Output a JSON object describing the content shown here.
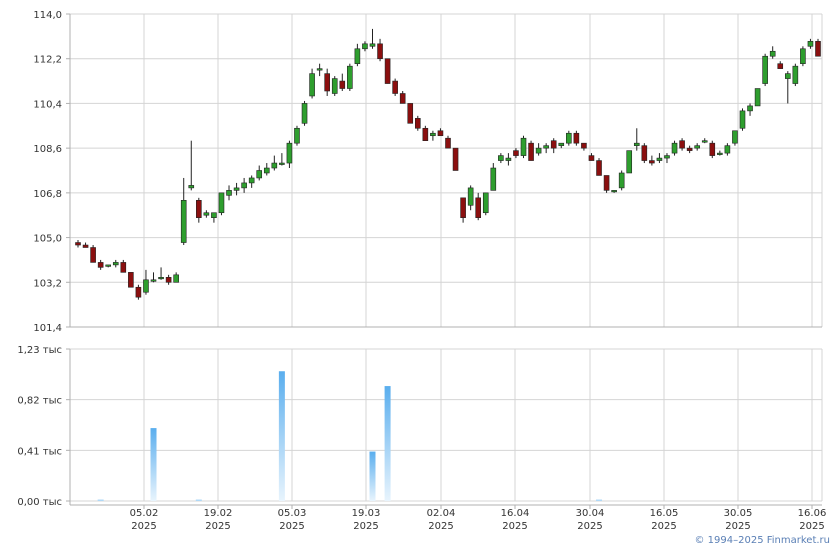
{
  "chart_data": [
    {
      "type": "candlestick",
      "ylim": [
        101.4,
        114.0
      ],
      "yticks": [
        "114,0",
        "112,2",
        "110,4",
        "108,6",
        "106,8",
        "105,0",
        "103,2",
        "101,4"
      ],
      "xticks": [
        {
          "date": "05.02",
          "year": "2025"
        },
        {
          "date": "19.02",
          "year": "2025"
        },
        {
          "date": "05.03",
          "year": "2025"
        },
        {
          "date": "19.03",
          "year": "2025"
        },
        {
          "date": "02.04",
          "year": "2025"
        },
        {
          "date": "16.04",
          "year": "2025"
        },
        {
          "date": "30.04",
          "year": "2025"
        },
        {
          "date": "16.05",
          "year": "2025"
        },
        {
          "date": "30.05",
          "year": "2025"
        },
        {
          "date": "16.06",
          "year": "2025"
        }
      ],
      "grid": true,
      "candles": [
        [
          104.8,
          104.9,
          104.6,
          104.7
        ],
        [
          104.7,
          104.8,
          104.6,
          104.6
        ],
        [
          104.6,
          104.7,
          104.0,
          104.0
        ],
        [
          104.0,
          104.1,
          103.7,
          103.8
        ],
        [
          103.9,
          103.9,
          103.8,
          103.9
        ],
        [
          103.9,
          104.1,
          103.8,
          104.0
        ],
        [
          104.0,
          104.1,
          103.6,
          103.6
        ],
        [
          103.6,
          103.6,
          103.0,
          103.0
        ],
        [
          103.0,
          103.1,
          102.5,
          102.6
        ],
        [
          102.8,
          103.7,
          102.7,
          103.3
        ],
        [
          103.3,
          103.6,
          103.2,
          103.3
        ],
        [
          103.4,
          103.8,
          103.3,
          103.4
        ],
        [
          103.4,
          103.5,
          103.1,
          103.2
        ],
        [
          103.2,
          103.6,
          103.2,
          103.5
        ],
        [
          104.8,
          107.4,
          104.7,
          106.5
        ],
        [
          107.0,
          108.9,
          106.9,
          107.1
        ],
        [
          106.5,
          106.6,
          105.6,
          105.8
        ],
        [
          105.9,
          106.1,
          105.8,
          106.0
        ],
        [
          105.8,
          106.0,
          105.6,
          106.0
        ],
        [
          106.0,
          106.8,
          105.9,
          106.8
        ],
        [
          106.7,
          107.1,
          106.5,
          106.9
        ],
        [
          106.9,
          107.2,
          106.7,
          107.0
        ],
        [
          107.0,
          107.4,
          106.8,
          107.2
        ],
        [
          107.2,
          107.5,
          107.0,
          107.4
        ],
        [
          107.4,
          107.9,
          107.3,
          107.7
        ],
        [
          107.6,
          108.0,
          107.5,
          107.8
        ],
        [
          107.8,
          108.3,
          107.7,
          108.0
        ],
        [
          108.0,
          108.4,
          107.9,
          108.0
        ],
        [
          108.0,
          108.9,
          107.8,
          108.8
        ],
        [
          108.8,
          109.5,
          108.7,
          109.4
        ],
        [
          109.6,
          110.5,
          109.5,
          110.4
        ],
        [
          110.7,
          111.8,
          110.6,
          111.6
        ],
        [
          111.8,
          112.0,
          111.5,
          111.8
        ],
        [
          111.6,
          111.8,
          110.7,
          110.9
        ],
        [
          110.8,
          111.5,
          110.7,
          111.4
        ],
        [
          111.3,
          111.6,
          110.9,
          111.0
        ],
        [
          111.0,
          112.0,
          110.9,
          111.9
        ],
        [
          112.0,
          112.8,
          111.9,
          112.6
        ],
        [
          112.6,
          112.9,
          112.5,
          112.8
        ],
        [
          112.7,
          113.4,
          112.6,
          112.8
        ],
        [
          112.8,
          113.0,
          112.1,
          112.2
        ],
        [
          112.2,
          112.2,
          111.2,
          111.2
        ],
        [
          111.3,
          111.4,
          110.7,
          110.8
        ],
        [
          110.8,
          110.9,
          110.4,
          110.4
        ],
        [
          110.4,
          110.4,
          109.6,
          109.6
        ],
        [
          109.8,
          109.9,
          109.3,
          109.4
        ],
        [
          109.4,
          109.5,
          108.9,
          108.9
        ],
        [
          109.1,
          109.3,
          108.9,
          109.2
        ],
        [
          109.3,
          109.4,
          109.1,
          109.1
        ],
        [
          109.0,
          109.1,
          108.6,
          108.6
        ],
        [
          108.6,
          108.6,
          107.7,
          107.7
        ],
        [
          106.6,
          106.6,
          105.6,
          105.8
        ],
        [
          106.3,
          107.1,
          106.1,
          107.0
        ],
        [
          106.6,
          106.8,
          105.7,
          105.8
        ],
        [
          106.0,
          106.8,
          105.9,
          106.8
        ],
        [
          106.9,
          108.0,
          106.9,
          107.8
        ],
        [
          108.1,
          108.4,
          108.0,
          108.3
        ],
        [
          108.1,
          108.4,
          107.9,
          108.2
        ],
        [
          108.5,
          108.6,
          108.2,
          108.3
        ],
        [
          108.3,
          109.1,
          108.2,
          109.0
        ],
        [
          108.8,
          108.9,
          108.1,
          108.1
        ],
        [
          108.4,
          108.8,
          108.3,
          108.6
        ],
        [
          108.6,
          108.8,
          108.4,
          108.7
        ],
        [
          108.9,
          109.0,
          108.4,
          108.6
        ],
        [
          108.7,
          108.8,
          108.6,
          108.8
        ],
        [
          108.8,
          109.3,
          108.7,
          109.2
        ],
        [
          109.2,
          109.3,
          108.7,
          108.8
        ],
        [
          108.8,
          108.8,
          108.5,
          108.6
        ],
        [
          108.3,
          108.4,
          108.1,
          108.1
        ],
        [
          108.1,
          108.2,
          107.5,
          107.5
        ],
        [
          107.5,
          107.5,
          106.8,
          106.9
        ],
        [
          106.9,
          106.9,
          106.8,
          106.9
        ],
        [
          107.0,
          107.7,
          106.9,
          107.6
        ],
        [
          107.6,
          108.5,
          107.6,
          108.5
        ],
        [
          108.7,
          109.4,
          108.5,
          108.8
        ],
        [
          108.7,
          108.8,
          108.0,
          108.1
        ],
        [
          108.1,
          108.3,
          107.9,
          108.0
        ],
        [
          108.1,
          108.4,
          108.0,
          108.2
        ],
        [
          108.2,
          108.4,
          108.0,
          108.3
        ],
        [
          108.4,
          108.9,
          108.3,
          108.8
        ],
        [
          108.9,
          109.0,
          108.5,
          108.6
        ],
        [
          108.6,
          108.7,
          108.4,
          108.5
        ],
        [
          108.6,
          108.8,
          108.5,
          108.7
        ],
        [
          108.9,
          109.0,
          108.8,
          108.9
        ],
        [
          108.8,
          108.9,
          108.2,
          108.3
        ],
        [
          108.4,
          108.5,
          108.3,
          108.4
        ],
        [
          108.4,
          108.8,
          108.3,
          108.7
        ],
        [
          108.8,
          109.3,
          108.7,
          109.3
        ],
        [
          109.4,
          110.2,
          109.3,
          110.1
        ],
        [
          110.1,
          110.4,
          109.9,
          110.3
        ],
        [
          110.3,
          111.0,
          110.3,
          111.0
        ],
        [
          111.2,
          112.4,
          111.1,
          112.3
        ],
        [
          112.3,
          112.7,
          112.2,
          112.5
        ],
        [
          112.0,
          112.1,
          111.8,
          111.8
        ],
        [
          111.4,
          111.7,
          110.4,
          111.6
        ],
        [
          111.2,
          112.0,
          111.1,
          111.9
        ],
        [
          112.0,
          112.7,
          111.9,
          112.6
        ],
        [
          112.7,
          113.0,
          112.6,
          112.9
        ],
        [
          112.9,
          113.0,
          112.3,
          112.3
        ]
      ]
    },
    {
      "type": "bar",
      "ylim": [
        0,
        1.23
      ],
      "yticks": [
        "1,23 тыс",
        "0,82 тыс",
        "0,41 тыс",
        "0,00 тыс"
      ],
      "volumes": [
        [
          3,
          0.01
        ],
        [
          10,
          0.59
        ],
        [
          16,
          0.01
        ],
        [
          27,
          1.05
        ],
        [
          39,
          0.4
        ],
        [
          41,
          0.93
        ],
        [
          69,
          0.01
        ]
      ]
    }
  ],
  "footer": {
    "copyright": "© 1994–2025 Finmarket.ru"
  },
  "colors": {
    "up": "#2e9e2e",
    "down": "#8b0f0f",
    "grid": "#d4d4d4",
    "axis": "#b0b0b0",
    "volume_top": "#5aaeee",
    "volume_bottom": "#e8f4fd",
    "copyright": "#5a7fb5"
  }
}
